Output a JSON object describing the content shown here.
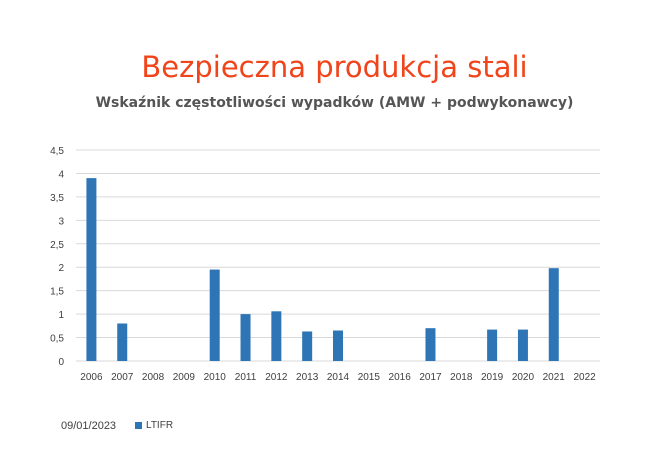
{
  "title": "Bezpieczna produkcja stali",
  "subtitle": "Wskaźnik częstotliwości wypadków (AMW + podwykonawcy)",
  "date": "09/01/2023",
  "colors": {
    "title": "#f0441b",
    "bar": "#2e75b6",
    "grid": "#d9d9d9"
  },
  "chart_data": {
    "type": "bar",
    "categories": [
      "2006",
      "2007",
      "2008",
      "2009",
      "2010",
      "2011",
      "2012",
      "2013",
      "2014",
      "2015",
      "2016",
      "2017",
      "2018",
      "2019",
      "2020",
      "2021",
      "2022"
    ],
    "series": [
      {
        "name": "LTIFR",
        "values": [
          3.9,
          0.8,
          0,
          0,
          1.95,
          1.0,
          1.06,
          0.63,
          0.65,
          0,
          0,
          0.7,
          0,
          0.67,
          0.67,
          1.98,
          0
        ]
      }
    ],
    "ylim": [
      0,
      4.5
    ],
    "yticks": [
      "0",
      "0,5",
      "1",
      "1,5",
      "2",
      "2,5",
      "3",
      "3,5",
      "4",
      "4,5"
    ],
    "grid": true,
    "legend": "bottom-left"
  }
}
